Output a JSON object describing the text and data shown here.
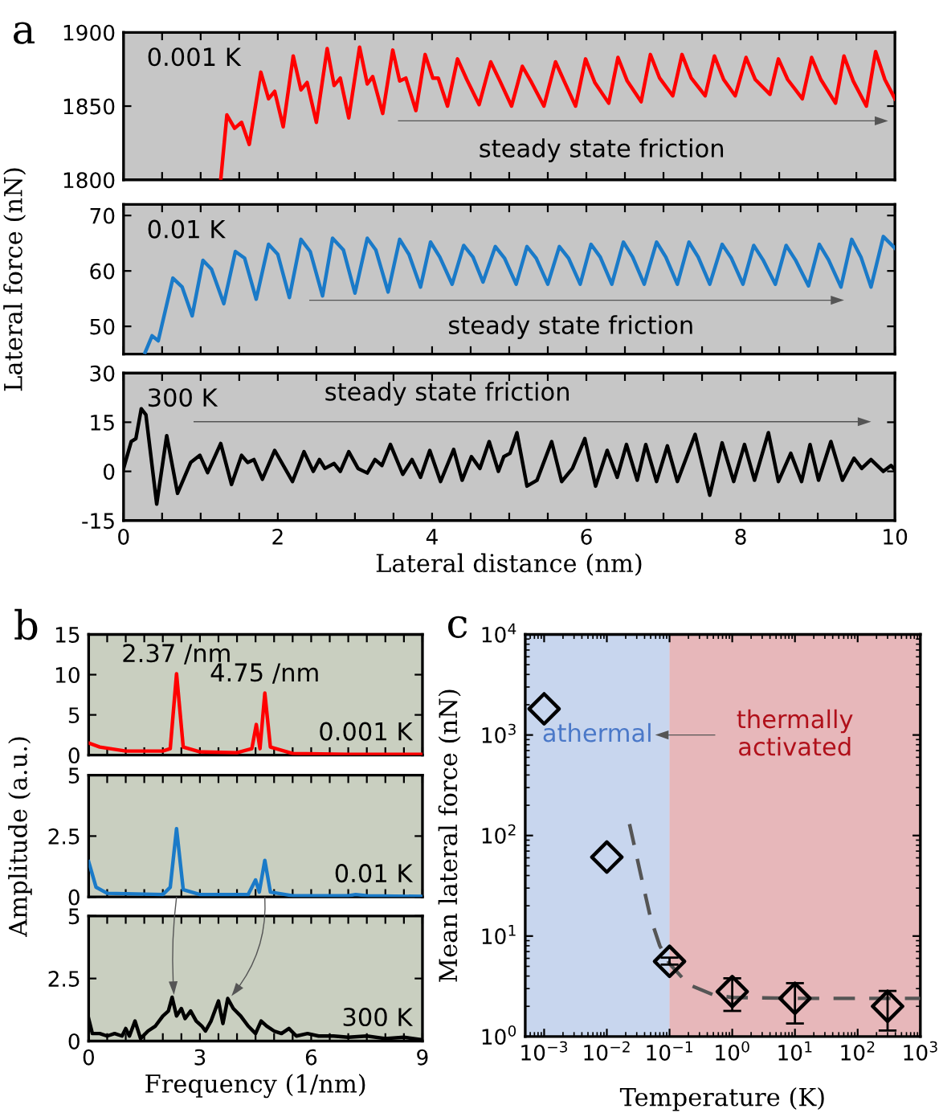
{
  "chart_data": [
    {
      "type": "line",
      "title": "a",
      "xlim": [
        0,
        10
      ],
      "ylim": [
        1800,
        1900
      ],
      "yticks": [
        1800,
        1850,
        1900
      ],
      "tick_labels": "y",
      "xticks": [
        0,
        {
          "value": 0.5,
          "label": null
        },
        {
          "value": 1,
          "label": null
        },
        {
          "value": 1.5,
          "label": null
        },
        2,
        {
          "value": 2.5,
          "label": null
        },
        {
          "value": 3,
          "label": null
        },
        {
          "value": 3.5,
          "label": null
        },
        4,
        {
          "value": 4.5,
          "label": null
        },
        {
          "value": 5,
          "label": null
        },
        {
          "value": 5.5,
          "label": null
        },
        6,
        {
          "value": 6.5,
          "label": null
        },
        {
          "value": 7,
          "label": null
        },
        {
          "value": 7.5,
          "label": null
        },
        8,
        {
          "value": 8.5,
          "label": null
        },
        {
          "value": 9,
          "label": null
        },
        {
          "value": 9.5,
          "label": null
        },
        10
      ],
      "annotations": [
        "steady state friction"
      ],
      "series": [
        {
          "name": "0.001 K",
          "color": "#ff0000",
          "x": [
            1.26,
            1.34,
            1.44,
            1.53,
            1.63,
            1.78,
            1.88,
            1.96,
            2.07,
            2.2,
            2.3,
            2.38,
            2.5,
            2.64,
            2.73,
            2.81,
            2.92,
            3.06,
            3.16,
            3.23,
            3.36,
            3.49,
            3.58,
            3.66,
            3.79,
            3.91,
            4.01,
            4.08,
            4.2,
            4.33,
            4.45,
            4.61,
            4.76,
            4.88,
            5.03,
            5.17,
            5.29,
            5.45,
            5.6,
            5.72,
            5.86,
            5.99,
            6.11,
            6.29,
            6.41,
            6.53,
            6.71,
            6.83,
            6.95,
            7.12,
            7.24,
            7.36,
            7.54,
            7.66,
            7.78,
            7.93,
            8.07,
            8.19,
            8.38,
            8.49,
            8.61,
            8.8,
            8.92,
            9.04,
            9.23,
            9.34,
            9.46,
            9.63,
            9.75,
            9.87,
            10.0
          ],
          "values": [
            1800,
            1844,
            1835,
            1839,
            1824,
            1873,
            1855,
            1860,
            1836,
            1884,
            1861,
            1866,
            1839,
            1889,
            1864,
            1869,
            1842,
            1890,
            1865,
            1870,
            1845,
            1888,
            1867,
            1869,
            1847,
            1885,
            1869,
            1869,
            1850,
            1882,
            1868,
            1851,
            1880,
            1867,
            1850,
            1877,
            1866,
            1850,
            1880,
            1866,
            1850,
            1882,
            1866,
            1852,
            1883,
            1867,
            1853,
            1885,
            1869,
            1857,
            1885,
            1869,
            1857,
            1884,
            1868,
            1857,
            1883,
            1868,
            1858,
            1882,
            1868,
            1855,
            1883,
            1868,
            1852,
            1884,
            1867,
            1850,
            1887,
            1868,
            1855
          ]
        }
      ]
    },
    {
      "type": "line",
      "ylabel": "Lateral force (nN)",
      "xlim": [
        0,
        10
      ],
      "ylim": [
        45,
        72
      ],
      "yticks": [
        50,
        60,
        70
      ],
      "tick_labels": "y",
      "xticks": [
        0,
        {
          "value": 0.5,
          "label": null
        },
        {
          "value": 1,
          "label": null
        },
        {
          "value": 1.5,
          "label": null
        },
        2,
        {
          "value": 2.5,
          "label": null
        },
        {
          "value": 3,
          "label": null
        },
        {
          "value": 3.5,
          "label": null
        },
        4,
        {
          "value": 4.5,
          "label": null
        },
        {
          "value": 5,
          "label": null
        },
        {
          "value": 5.5,
          "label": null
        },
        6,
        {
          "value": 6.5,
          "label": null
        },
        {
          "value": 7,
          "label": null
        },
        {
          "value": 7.5,
          "label": null
        },
        8,
        {
          "value": 8.5,
          "label": null
        },
        {
          "value": 9,
          "label": null
        },
        {
          "value": 9.5,
          "label": null
        },
        10
      ],
      "annotations": [
        "steady state friction"
      ],
      "series": [
        {
          "name": "0.01 K",
          "color": "#1a7ac8",
          "x": [
            0.28,
            0.37,
            0.45,
            0.64,
            0.76,
            0.89,
            1.03,
            1.14,
            1.3,
            1.45,
            1.57,
            1.72,
            1.88,
            2.0,
            2.15,
            2.3,
            2.42,
            2.58,
            2.71,
            2.85,
            3.0,
            3.16,
            3.27,
            3.43,
            3.58,
            3.7,
            3.85,
            3.98,
            4.1,
            4.26,
            4.41,
            4.53,
            4.66,
            4.82,
            4.94,
            5.09,
            5.23,
            5.35,
            5.5,
            5.65,
            5.77,
            5.92,
            6.06,
            6.18,
            6.33,
            6.48,
            6.6,
            6.75,
            6.91,
            7.03,
            7.18,
            7.33,
            7.45,
            7.6,
            7.76,
            7.88,
            8.03,
            8.17,
            8.29,
            8.45,
            8.59,
            8.71,
            8.88,
            9.02,
            9.14,
            9.3,
            9.44,
            9.56,
            9.69,
            9.85,
            10.0
          ],
          "values": [
            45.3,
            48.3,
            47.4,
            58.7,
            57.1,
            51.9,
            61.9,
            60.3,
            54.1,
            63.5,
            62.3,
            54.9,
            64.8,
            63.0,
            55.2,
            65.7,
            63.5,
            55.5,
            65.9,
            63.8,
            56.0,
            65.9,
            63.8,
            56.2,
            65.7,
            63.0,
            57.1,
            65.2,
            62.5,
            57.6,
            64.6,
            62.5,
            58.0,
            64.4,
            62.3,
            57.6,
            64.4,
            62.3,
            57.6,
            64.4,
            62.3,
            57.6,
            64.8,
            62.5,
            57.6,
            65.2,
            62.5,
            57.6,
            65.2,
            62.5,
            57.6,
            65.2,
            62.5,
            57.6,
            64.8,
            62.3,
            57.6,
            64.6,
            62.0,
            57.6,
            64.6,
            62.0,
            57.3,
            64.8,
            62.0,
            57.1,
            65.7,
            62.5,
            57.1,
            66.2,
            64.1
          ]
        }
      ]
    },
    {
      "type": "line",
      "xlabel": "Lateral distance (nm)",
      "xlim": [
        0,
        10
      ],
      "ylim": [
        -15,
        30
      ],
      "yticks": [
        -15,
        0,
        15,
        30
      ],
      "xticks": [
        0,
        {
          "value": 0.5,
          "label": null
        },
        {
          "value": 1,
          "label": null
        },
        {
          "value": 1.5,
          "label": null
        },
        2,
        {
          "value": 2.5,
          "label": null
        },
        {
          "value": 3,
          "label": null
        },
        {
          "value": 3.5,
          "label": null
        },
        4,
        {
          "value": 4.5,
          "label": null
        },
        {
          "value": 5,
          "label": null
        },
        {
          "value": 5.5,
          "label": null
        },
        6,
        {
          "value": 6.5,
          "label": null
        },
        {
          "value": 7,
          "label": null
        },
        {
          "value": 7.5,
          "label": null
        },
        8,
        {
          "value": 8.5,
          "label": null
        },
        {
          "value": 9,
          "label": null
        },
        {
          "value": 9.5,
          "label": null
        },
        10
      ],
      "annotations": [
        "steady state friction"
      ],
      "series": [
        {
          "name": "300 K",
          "color": "#000000",
          "x": [
            0,
            0.1,
            0.16,
            0.23,
            0.29,
            0.43,
            0.56,
            0.7,
            0.87,
            0.99,
            1.09,
            1.26,
            1.4,
            1.53,
            1.61,
            1.69,
            1.8,
            1.96,
            2.19,
            2.34,
            2.46,
            2.54,
            2.61,
            2.73,
            2.81,
            2.92,
            3.04,
            3.16,
            3.26,
            3.35,
            3.46,
            3.62,
            3.74,
            3.85,
            3.97,
            4.11,
            4.28,
            4.39,
            4.51,
            4.62,
            4.74,
            4.86,
            4.93,
            5.01,
            5.1,
            5.23,
            5.36,
            5.55,
            5.68,
            5.82,
            5.98,
            6.12,
            6.27,
            6.4,
            6.52,
            6.66,
            6.77,
            6.91,
            7.05,
            7.18,
            7.41,
            7.6,
            7.76,
            7.91,
            8.05,
            8.18,
            8.36,
            8.49,
            8.65,
            8.79,
            8.9,
            9.01,
            9.17,
            9.32,
            9.47,
            9.57,
            9.69,
            9.85,
            9.95,
            10.0
          ],
          "values": [
            0.9,
            9.1,
            10,
            19.1,
            17.3,
            -10,
            10.9,
            -6.7,
            2.7,
            4.9,
            -0.4,
            8.5,
            -4.0,
            4.9,
            2.7,
            3.6,
            -2.4,
            6.4,
            -3.1,
            6.0,
            0,
            3.6,
            0.9,
            2.4,
            0,
            6.0,
            0.9,
            -0.5,
            3.6,
            1.8,
            8.2,
            -0.9,
            3.6,
            -1.8,
            6.4,
            -3.1,
            6.7,
            -2.7,
            4.5,
            0.9,
            9.1,
            0,
            4.5,
            5.5,
            11.8,
            -4.5,
            -2.7,
            9.1,
            -3.1,
            0.9,
            10,
            -4.5,
            6.4,
            -1.8,
            8.2,
            -2.7,
            8.2,
            -3.1,
            7.8,
            -3.1,
            11.3,
            -7.3,
            8.7,
            -3.1,
            8.2,
            -2.7,
            11.8,
            -3.1,
            5.5,
            -3.1,
            8.2,
            -2.7,
            9.1,
            -2.7,
            4.0,
            0.9,
            3.6,
            0,
            1.8,
            0.5
          ]
        }
      ]
    },
    {
      "type": "line",
      "title": "b",
      "xlim": [
        0,
        9
      ],
      "ylim": [
        0,
        15
      ],
      "yticks": [
        0,
        5,
        10,
        15
      ],
      "tick_labels": "y",
      "xticks": [
        0,
        {
          "value": 0.5,
          "label": null
        },
        {
          "value": 1,
          "label": null
        },
        {
          "value": 1.5,
          "label": null
        },
        {
          "value": 2,
          "label": null
        },
        {
          "value": 2.5,
          "label": null
        },
        3,
        {
          "value": 3.5,
          "label": null
        },
        {
          "value": 4,
          "label": null
        },
        {
          "value": 4.5,
          "label": null
        },
        {
          "value": 5,
          "label": null
        },
        {
          "value": 5.5,
          "label": null
        },
        6,
        {
          "value": 6.5,
          "label": null
        },
        {
          "value": 7,
          "label": null
        },
        {
          "value": 7.5,
          "label": null
        },
        {
          "value": 8,
          "label": null
        },
        {
          "value": 8.5,
          "label": null
        },
        9
      ],
      "annotations": [
        {
          "text": "2.37 /nm",
          "x": 2.37,
          "y": 10.1
        },
        {
          "text": "4.75 /nm",
          "x": 4.75,
          "y": 7.7
        }
      ],
      "series": [
        {
          "name": "0.001 K",
          "color": "#ff0000",
          "x": [
            0,
            0.3,
            1,
            2,
            2.2,
            2.37,
            2.55,
            3,
            4,
            4.4,
            4.52,
            4.62,
            4.75,
            4.9,
            5.5,
            7,
            9
          ],
          "values": [
            1.5,
            1.0,
            0.5,
            0.5,
            0.8,
            10.1,
            1.0,
            0.4,
            0.3,
            0.8,
            3.8,
            0.8,
            7.7,
            1.0,
            0.2,
            0.1,
            0.1
          ]
        }
      ]
    },
    {
      "type": "line",
      "ylabel": "Amplitude (a.u.)",
      "xlim": [
        0,
        9
      ],
      "ylim": [
        0,
        5
      ],
      "yticks": [
        0,
        2.5,
        5
      ],
      "tick_labels": "y",
      "xticks": [
        0,
        {
          "value": 0.5,
          "label": null
        },
        {
          "value": 1,
          "label": null
        },
        {
          "value": 1.5,
          "label": null
        },
        {
          "value": 2,
          "label": null
        },
        {
          "value": 2.5,
          "label": null
        },
        3,
        {
          "value": 3.5,
          "label": null
        },
        {
          "value": 4,
          "label": null
        },
        {
          "value": 4.5,
          "label": null
        },
        {
          "value": 5,
          "label": null
        },
        {
          "value": 5.5,
          "label": null
        },
        6,
        {
          "value": 6.5,
          "label": null
        },
        {
          "value": 7,
          "label": null
        },
        {
          "value": 7.5,
          "label": null
        },
        {
          "value": 8,
          "label": null
        },
        {
          "value": 8.5,
          "label": null
        },
        9
      ],
      "series": [
        {
          "name": "0.01 K",
          "color": "#1a7ac8",
          "x": [
            0,
            0.2,
            0.5,
            2,
            2.2,
            2.37,
            2.55,
            3,
            4.3,
            4.5,
            4.6,
            4.75,
            4.9,
            5.5,
            7,
            7.2,
            7.5,
            9
          ],
          "values": [
            1.45,
            0.4,
            0.15,
            0.1,
            0.4,
            2.8,
            0.3,
            0.1,
            0.1,
            0.7,
            0.2,
            1.5,
            0.2,
            0.05,
            0.05,
            0.1,
            0.05,
            0.02
          ]
        }
      ]
    },
    {
      "type": "line",
      "xlabel": "Frequency (1/nm)",
      "xlim": [
        0,
        9
      ],
      "ylim": [
        0,
        5
      ],
      "yticks": [
        0,
        2.5,
        5
      ],
      "xticks": [
        0,
        {
          "value": 0.5,
          "label": null
        },
        {
          "value": 1,
          "label": null
        },
        {
          "value": 1.5,
          "label": null
        },
        {
          "value": 2,
          "label": null
        },
        {
          "value": 2.5,
          "label": null
        },
        3,
        {
          "value": 3.5,
          "label": null
        },
        {
          "value": 4,
          "label": null
        },
        {
          "value": 4.5,
          "label": null
        },
        {
          "value": 5,
          "label": null
        },
        {
          "value": 5.5,
          "label": null
        },
        6,
        {
          "value": 6.5,
          "label": null
        },
        {
          "value": 7,
          "label": null
        },
        {
          "value": 7.5,
          "label": null
        },
        {
          "value": 8,
          "label": null
        },
        {
          "value": 8.5,
          "label": null
        },
        9
      ],
      "series": [
        {
          "name": "300 K",
          "color": "#000000",
          "x": [
            0,
            0.1,
            0.3,
            0.5,
            0.7,
            0.9,
            1.0,
            1.1,
            1.25,
            1.4,
            1.6,
            1.8,
            2.0,
            2.15,
            2.25,
            2.37,
            2.5,
            2.6,
            2.75,
            2.9,
            3.05,
            3.15,
            3.3,
            3.5,
            3.62,
            3.75,
            3.9,
            4.1,
            4.3,
            4.5,
            4.65,
            4.8,
            5.0,
            5.2,
            5.4,
            5.6,
            5.9,
            6.2,
            6.6,
            7,
            7.5,
            8,
            8.5,
            9
          ],
          "values": [
            0.9,
            0.3,
            0.3,
            0.2,
            0.3,
            0.2,
            0.5,
            0.2,
            0.8,
            0.1,
            0.4,
            0.6,
            1.0,
            1.2,
            1.75,
            1.0,
            1.3,
            0.9,
            1.2,
            0.8,
            0.6,
            0.4,
            0.8,
            1.6,
            0.7,
            1.7,
            1.3,
            1.0,
            0.6,
            0.3,
            0.8,
            0.6,
            0.4,
            0.3,
            0.5,
            0.2,
            0.3,
            0.2,
            0.2,
            0.15,
            0.2,
            0.1,
            0.15,
            0.05
          ]
        }
      ]
    },
    {
      "type": "scatter",
      "title": "c",
      "xlabel": "Temperature (K)",
      "ylabel": "Mean lateral force (nN)",
      "log": "xy",
      "xlim": [
        0.0005,
        1000
      ],
      "ylim": [
        1,
        10000
      ],
      "xticks": [
        {
          "value": 0.001,
          "label": "10$^{−3}$"
        },
        {
          "value": 0.01,
          "label": "10$^{−2}$"
        },
        {
          "value": 0.1,
          "label": "10$^{−1}$"
        },
        {
          "value": 1,
          "label": "10$^{0}$"
        },
        {
          "value": 10,
          "label": "10$^{1}$"
        },
        {
          "value": 100,
          "label": "10$^{2}$"
        },
        {
          "value": 1000,
          "label": "10$^{3}$"
        }
      ],
      "yticks": [
        {
          "value": 1,
          "label": "10$^{0}$"
        },
        {
          "value": 10,
          "label": "10$^{1}$"
        },
        {
          "value": 100,
          "label": "10$^{2}$"
        },
        {
          "value": 1000,
          "label": "10$^{3}$"
        },
        {
          "value": 10000,
          "label": "10$^{4}$"
        }
      ],
      "bands": [
        {
          "axis": "x",
          "from": 0.0005,
          "to": 0.1,
          "label": "athermal",
          "color": "#4a78c8"
        },
        {
          "axis": "x",
          "from": 0.1,
          "to": 1000,
          "label": "thermally activated",
          "color": "#b0101a"
        }
      ],
      "series": [
        {
          "type": "scatter",
          "color": "#000000",
          "marker": "diamond",
          "x": [
            0.001,
            0.01,
            0.1,
            1,
            10,
            300
          ],
          "values": [
            1820,
            61,
            5.6,
            2.8,
            2.4,
            2.0
          ],
          "errors": [
            null,
            null,
            [
              5.2,
              6.1
            ],
            [
              1.8,
              3.8
            ],
            [
              1.35,
              3.4
            ],
            [
              1.15,
              2.85
            ]
          ]
        },
        {
          "type": "line",
          "color": "#555555",
          "line_style": "dashed",
          "marker": "none",
          "x": [
            0.023,
            0.035,
            0.05,
            0.07,
            0.1,
            0.2,
            0.5,
            1,
            10,
            300,
            1000
          ],
          "values": [
            130,
            40,
            15,
            8,
            5.3,
            3.3,
            2.6,
            2.45,
            2.4,
            2.4,
            2.4
          ]
        }
      ]
    }
  ]
}
